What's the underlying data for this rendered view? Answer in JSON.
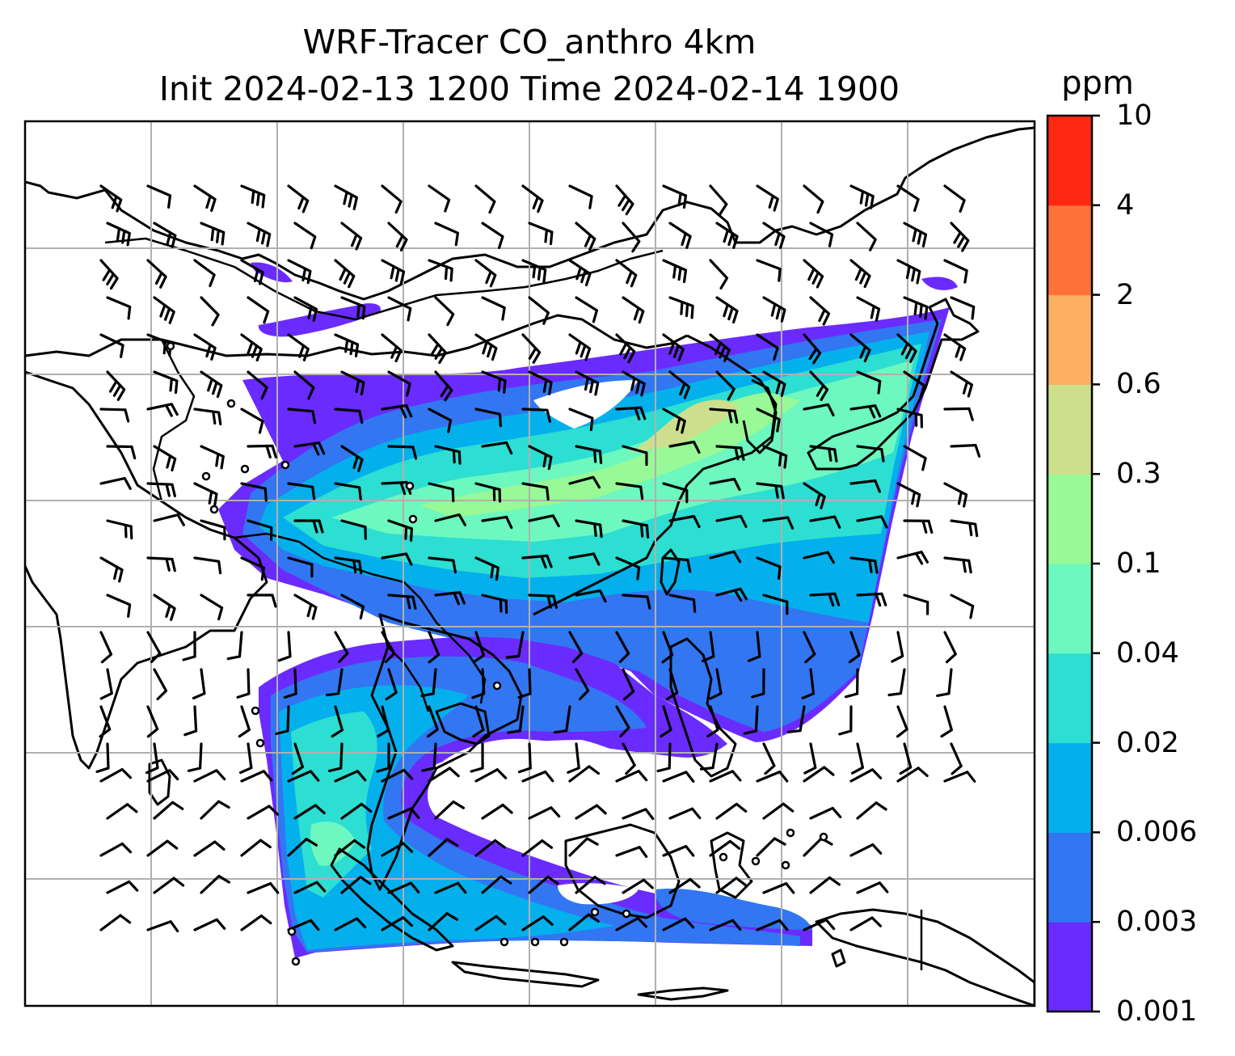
{
  "title": {
    "line1": "WRF-Tracer CO_anthro 4km",
    "line2": "Init 2024-02-13 1200 Time 2024-02-14 1900"
  },
  "colorbar": {
    "unit": "ppm",
    "ticks": [
      "0.001",
      "0.003",
      "0.006",
      "0.02",
      "0.04",
      "0.1",
      "0.3",
      "0.6",
      "2",
      "4",
      "10"
    ],
    "colors": [
      "#6a2bff",
      "#3276f2",
      "#03b0ec",
      "#2dded2",
      "#6cf8bf",
      "#99f996",
      "#cddf8d",
      "#fdaf62",
      "#ff7139",
      "#ff2913"
    ]
  },
  "map": {
    "field": "CO_anthro tracer concentration",
    "overlays": [
      "coastlines",
      "country-borders",
      "lat-lon-gridlines",
      "wind-barbs",
      "station-markers"
    ],
    "gridlines": true
  }
}
